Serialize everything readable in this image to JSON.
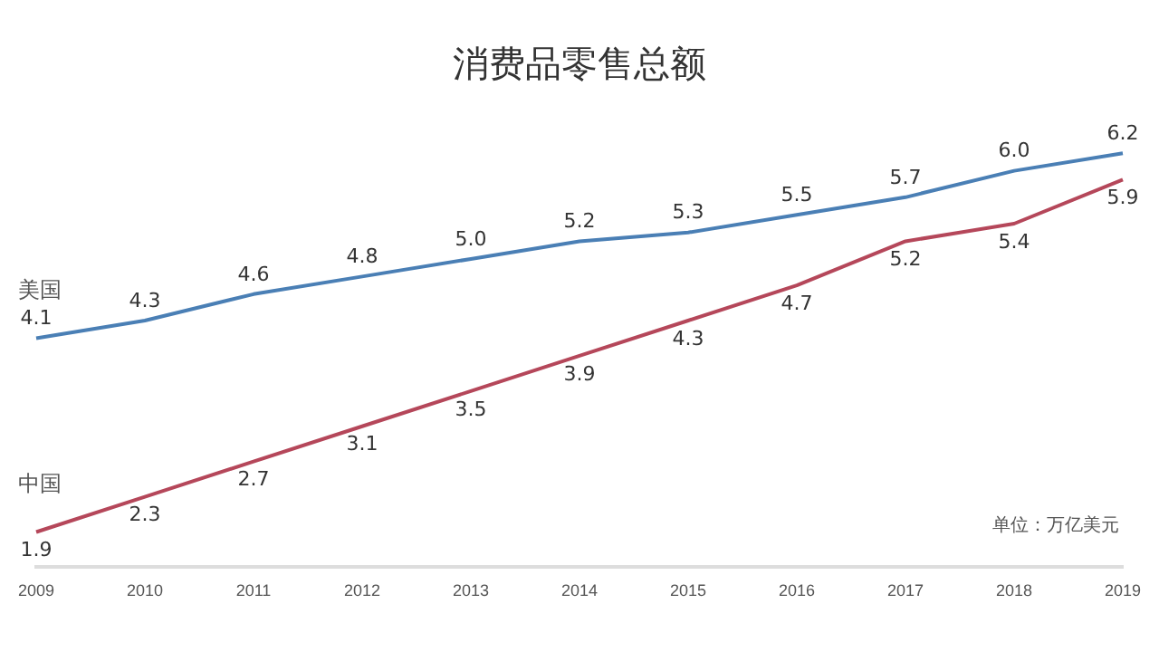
{
  "chart_data": {
    "type": "line",
    "title": "消费品零售总额",
    "annotations": [
      "单位：万亿美元"
    ],
    "categories": [
      "2009",
      "2010",
      "2011",
      "2012",
      "2013",
      "2014",
      "2015",
      "2016",
      "2017",
      "2018",
      "2019"
    ],
    "series": [
      {
        "name": "美国",
        "color": "#4a7fb5",
        "values": [
          4.1,
          4.3,
          4.6,
          4.8,
          5.0,
          5.2,
          5.3,
          5.5,
          5.7,
          6.0,
          6.2
        ],
        "value_labels": [
          "4.1",
          "4.3",
          "4.6",
          "4.8",
          "5.0",
          "5.2",
          "5.3",
          "5.5",
          "5.7",
          "6.0",
          "6.2"
        ]
      },
      {
        "name": "中国",
        "color": "#b5475a",
        "values": [
          1.9,
          2.3,
          2.7,
          3.1,
          3.5,
          3.9,
          4.3,
          4.7,
          5.2,
          5.4,
          5.9
        ],
        "value_labels": [
          "1.9",
          "2.3",
          "2.7",
          "3.1",
          "3.5",
          "3.9",
          "4.3",
          "4.7",
          "5.2",
          "5.4",
          "5.9"
        ]
      }
    ],
    "tick_labels": "x",
    "grid": false,
    "legend": false,
    "marker": "none",
    "line_style": "solid"
  }
}
